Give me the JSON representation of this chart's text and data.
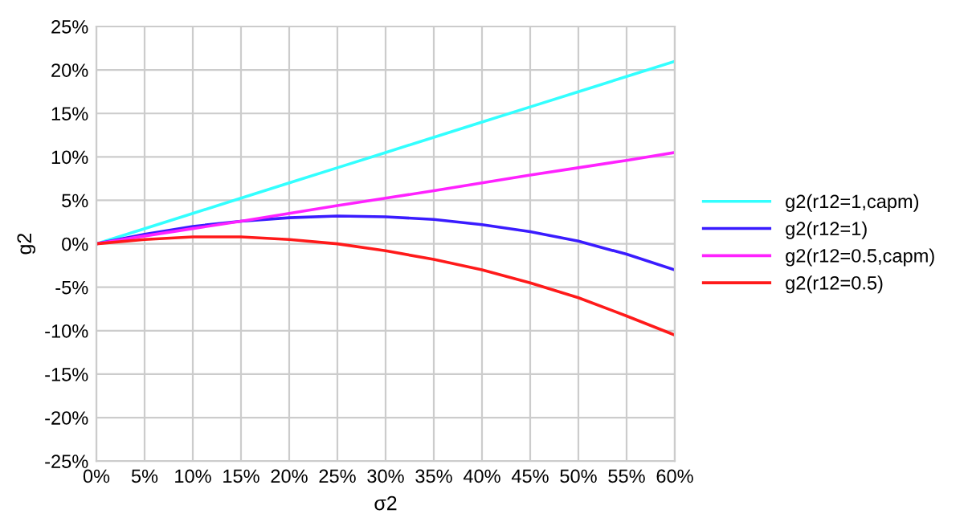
{
  "chart_data": {
    "type": "line",
    "xlabel": "σ2",
    "ylabel": "g2",
    "x": [
      0,
      5,
      10,
      15,
      20,
      25,
      30,
      35,
      40,
      45,
      50,
      55,
      60
    ],
    "series": [
      {
        "name": "g2(r12=1,capm)",
        "color": "#33ffff",
        "values": [
          0,
          1.75,
          3.5,
          5.25,
          7,
          8.75,
          10.5,
          12.25,
          14,
          15.75,
          17.5,
          19.25,
          21
        ]
      },
      {
        "name": "g2(r12=1)",
        "color": "#3a1cff",
        "values": [
          0,
          1.1,
          2.0,
          2.6,
          3.0,
          3.2,
          3.1,
          2.8,
          2.2,
          1.4,
          0.3,
          -1.2,
          -3.0
        ]
      },
      {
        "name": "g2(r12=0.5,capm)",
        "color": "#ff22ff",
        "values": [
          0,
          0.9,
          1.75,
          2.6,
          3.5,
          4.4,
          5.25,
          6.1,
          7,
          7.9,
          8.75,
          9.6,
          10.5
        ]
      },
      {
        "name": "g2(r12=0.5)",
        "color": "#ff1a1a",
        "values": [
          0,
          0.5,
          0.8,
          0.8,
          0.5,
          0.0,
          -0.8,
          -1.8,
          -3.0,
          -4.5,
          -6.2,
          -8.3,
          -10.5
        ]
      }
    ],
    "xlim": [
      0,
      60
    ],
    "xticks": [
      {
        "value": 0,
        "label": "0%"
      },
      {
        "value": 5,
        "label": "5%"
      },
      {
        "value": 10,
        "label": "10%"
      },
      {
        "value": 15,
        "label": "15%"
      },
      {
        "value": 20,
        "label": "20%"
      },
      {
        "value": 25,
        "label": "25%"
      },
      {
        "value": 30,
        "label": "30%"
      },
      {
        "value": 35,
        "label": "35%"
      },
      {
        "value": 40,
        "label": "40%"
      },
      {
        "value": 45,
        "label": "45%"
      },
      {
        "value": 50,
        "label": "50%"
      },
      {
        "value": 55,
        "label": "55%"
      },
      {
        "value": 60,
        "label": "60%"
      }
    ],
    "ylim": [
      -25,
      25
    ],
    "yticks": [
      {
        "value": -25,
        "label": "-25%"
      },
      {
        "value": -20,
        "label": "-20%"
      },
      {
        "value": -15,
        "label": "-15%"
      },
      {
        "value": -10,
        "label": "-10%"
      },
      {
        "value": -5,
        "label": "-5%"
      },
      {
        "value": 0,
        "label": "0%"
      },
      {
        "value": 5,
        "label": "5%"
      },
      {
        "value": 10,
        "label": "10%"
      },
      {
        "value": 15,
        "label": "15%"
      },
      {
        "value": 20,
        "label": "20%"
      },
      {
        "value": 25,
        "label": "25%"
      }
    ],
    "grid": true,
    "legend": "right",
    "marker": "none",
    "line_style": "solid"
  }
}
